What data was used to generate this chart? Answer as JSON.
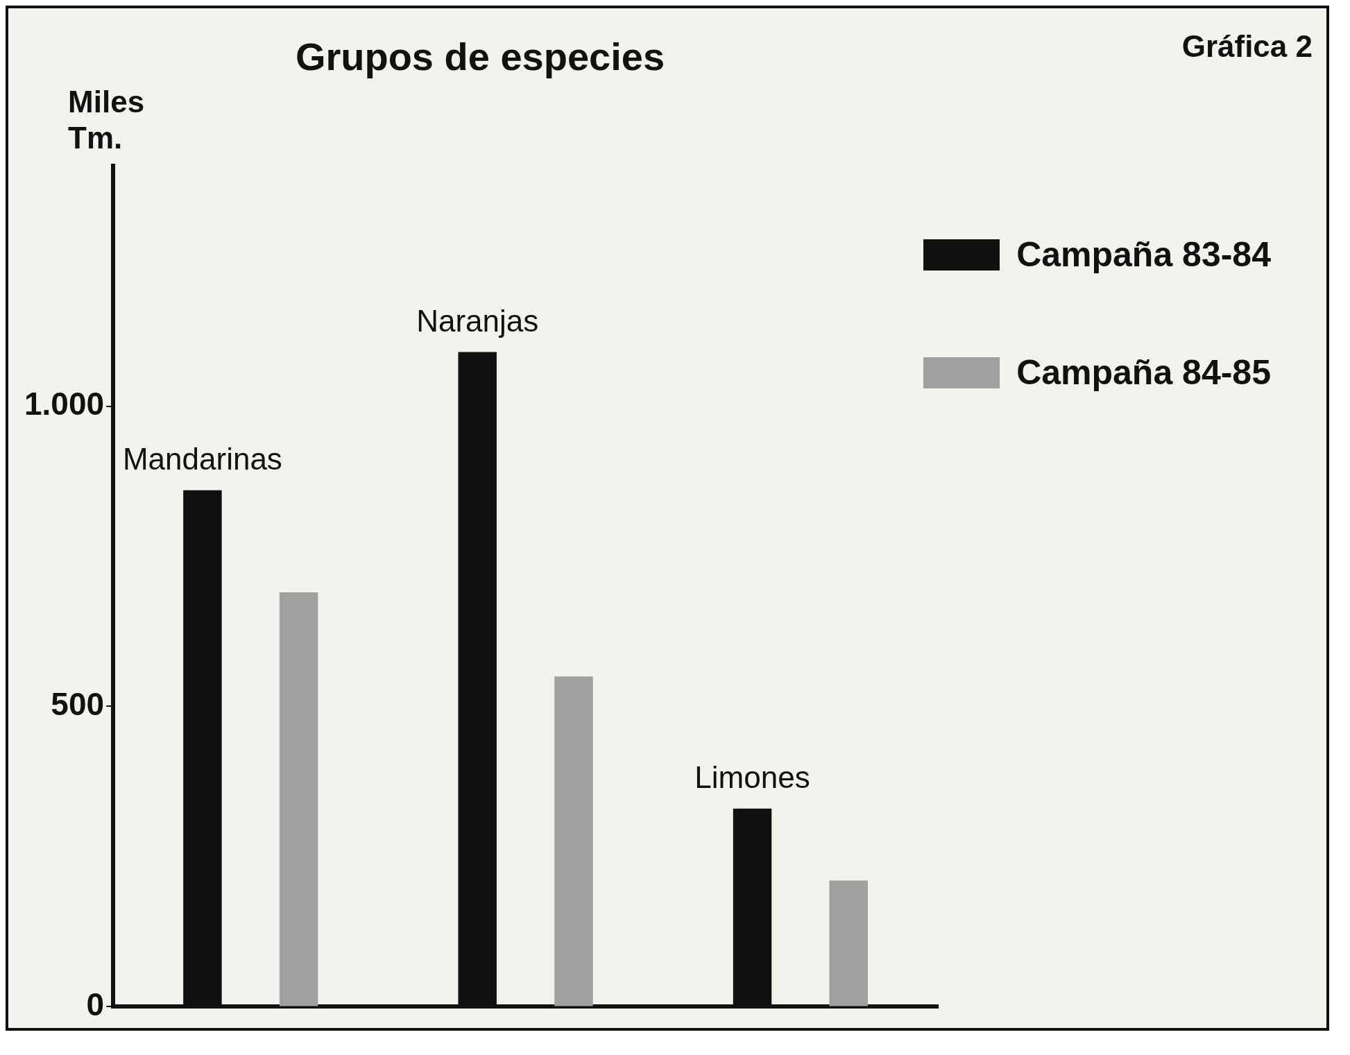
{
  "chart_data": {
    "type": "bar",
    "title": "Grupos de especies",
    "ylabel": "Miles\nTm.",
    "annotations": [
      "Gráfica 2"
    ],
    "categories": [
      "Mandarinas",
      "Naranjas",
      "Limones"
    ],
    "series": [
      {
        "name": "Campaña 83-84",
        "color": "#111111",
        "values": [
          860,
          1090,
          330
        ]
      },
      {
        "name": "Campaña 84-85",
        "color": "#a0a0a0",
        "values": [
          690,
          550,
          210
        ]
      }
    ],
    "ylim": [
      0,
      1400
    ],
    "yticks": [
      0,
      500,
      {
        "value": 1000,
        "label": "1.000"
      }
    ],
    "grid": false,
    "legend": "top right"
  }
}
